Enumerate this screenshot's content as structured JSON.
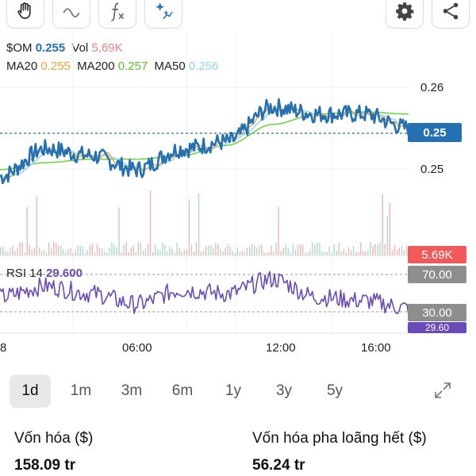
{
  "toolbar": {
    "left_buttons": [
      "hand-icon",
      "line-icon",
      "function-icon",
      "sparkle-icon"
    ],
    "right_buttons": [
      "gear-icon",
      "share-icon"
    ]
  },
  "legend": {
    "symbol": "$OM",
    "price": "0.255",
    "vol_label": "Vol",
    "vol_value": "5,69K",
    "ma20_label": "MA20",
    "ma20_value": "0.255",
    "ma200_label": "MA200",
    "ma200_value": "0.257",
    "ma50_label": "MA50",
    "ma50_value": "0.256"
  },
  "price_axis": {
    "top_label": "0.26",
    "current_tag": "0.25",
    "bottom_label": "0.25"
  },
  "volume": {
    "tag": "5.69K"
  },
  "rsi": {
    "label": "RSI 14",
    "value": "29.600",
    "upper_tag": "70.00",
    "lower_tag": "30.00",
    "current_tag": "29.60"
  },
  "time_axis": {
    "labels": [
      "8",
      "06:00",
      "12:00",
      "16:00"
    ]
  },
  "periods": {
    "items": [
      "1d",
      "1m",
      "3m",
      "6m",
      "1y",
      "3y",
      "5y"
    ],
    "active": "1d"
  },
  "stats": {
    "market_cap_label": "Vốn hóa ($)",
    "market_cap_value": "158.09 tr",
    "fdv_label": "Vốn hóa pha loãng hết ($)",
    "fdv_value": "56.24 tr"
  },
  "colors": {
    "price_line": "#2470b3",
    "ma20": "#f0a33a",
    "ma200": "#6fcf3b",
    "ma50": "#8fd3f0",
    "volume_tag": "#f05a5a",
    "rsi_line": "#6a4bb8",
    "rsi_tag": "#8e8e8e",
    "rsi_current_tag": "#6a4bb8"
  },
  "chart_data": {
    "type": "line",
    "series": [
      {
        "name": "$OM",
        "x": [
          "00:00",
          "02:00",
          "04:00",
          "06:00",
          "08:00",
          "10:00",
          "12:00",
          "14:00",
          "16:00",
          "17:00"
        ],
        "values": [
          0.248,
          0.252,
          0.251,
          0.249,
          0.252,
          0.253,
          0.258,
          0.257,
          0.257,
          0.255
        ]
      },
      {
        "name": "MA200",
        "x": [
          "00:00",
          "02:00",
          "04:00",
          "06:00",
          "08:00",
          "10:00",
          "12:00",
          "14:00",
          "16:00",
          "17:00"
        ],
        "values": [
          0.249,
          0.25,
          0.2505,
          0.2505,
          0.251,
          0.2525,
          0.2555,
          0.257,
          0.2573,
          0.257
        ]
      },
      {
        "name": "RSI 14",
        "x": [
          "00:00",
          "02:00",
          "04:00",
          "06:00",
          "08:00",
          "10:00",
          "12:00",
          "14:00",
          "16:00",
          "17:00"
        ],
        "values": [
          45,
          60,
          50,
          35,
          55,
          50,
          70,
          45,
          40,
          29.6
        ]
      }
    ],
    "ylim": [
      0.246,
      0.262
    ]
  }
}
